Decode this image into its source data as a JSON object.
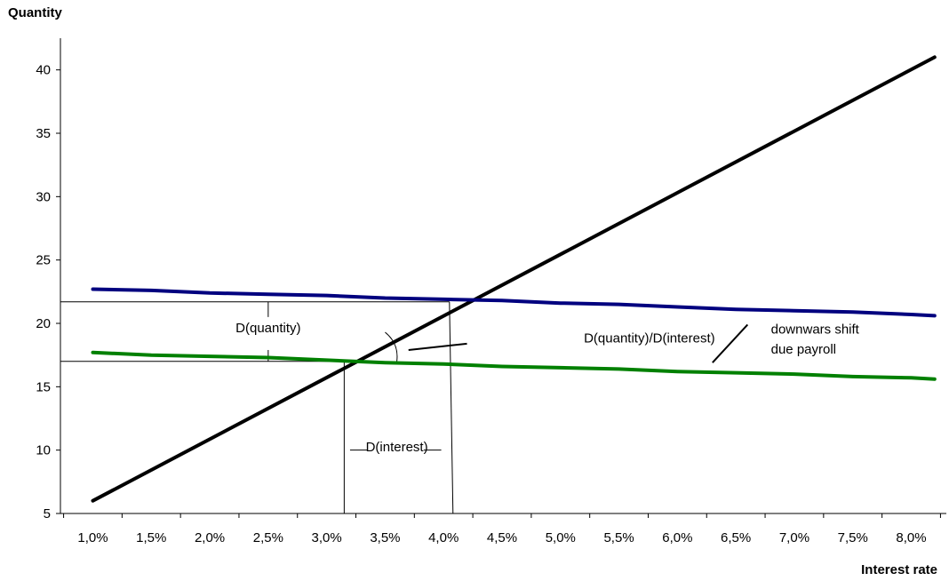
{
  "chart_data": {
    "type": "line",
    "xlabel": "Interest rate",
    "ylabel": "Quantity",
    "x_unit": "percent",
    "xlim": [
      0.7,
      8.3
    ],
    "ylim": [
      5,
      42.5
    ],
    "x_ticks": [
      1.0,
      1.5,
      2.0,
      2.5,
      3.0,
      3.5,
      4.0,
      4.5,
      5.0,
      5.5,
      6.0,
      6.5,
      7.0,
      7.5,
      8.0
    ],
    "x_tick_labels": [
      "1,0%",
      "1,5%",
      "2,0%",
      "2,5%",
      "3,0%",
      "3,5%",
      "4,0%",
      "4,5%",
      "5,0%",
      "5,5%",
      "6,0%",
      "6,5%",
      "7,0%",
      "7,5%",
      "8,0%"
    ],
    "y_ticks": [
      5,
      10,
      15,
      20,
      25,
      30,
      35,
      40
    ],
    "y_tick_labels": [
      "5",
      "10",
      "15",
      "20",
      "25",
      "30",
      "35",
      "40"
    ],
    "grid": false,
    "legend": "none",
    "series": [
      {
        "color": "#000000",
        "x": [
          1.0,
          8.2
        ],
        "y": [
          6.0,
          41.0
        ]
      },
      {
        "color": "#00007f",
        "x": [
          1.0,
          1.5,
          2.0,
          2.5,
          3.0,
          3.5,
          4.0,
          4.5,
          5.0,
          5.5,
          6.0,
          6.5,
          7.0,
          7.5,
          8.0,
          8.2
        ],
        "y": [
          22.7,
          22.6,
          22.4,
          22.3,
          22.2,
          22.0,
          21.9,
          21.8,
          21.6,
          21.5,
          21.3,
          21.1,
          21.0,
          20.9,
          20.7,
          20.6
        ]
      },
      {
        "color": "#008000",
        "x": [
          1.0,
          1.5,
          2.0,
          2.5,
          3.0,
          3.5,
          4.0,
          4.5,
          5.0,
          5.5,
          6.0,
          6.5,
          7.0,
          7.5,
          8.0,
          8.2
        ],
        "y": [
          17.7,
          17.5,
          17.4,
          17.3,
          17.1,
          16.9,
          16.8,
          16.6,
          16.5,
          16.4,
          16.2,
          16.1,
          16.0,
          15.8,
          15.7,
          15.6
        ]
      }
    ],
    "reference_lines": {
      "intersection_high": {
        "x": 4.05,
        "y": 21.7
      },
      "intersection_low": {
        "x": 3.15,
        "y": 17.0
      }
    },
    "annotations": [
      {
        "text": "D(quantity)",
        "x": 2.5,
        "y": 19.3
      },
      {
        "text": "D(quantity)/D(interest)",
        "x": 5.2,
        "y": 18.5
      },
      {
        "text": "D(interest)",
        "x": 3.6,
        "y": 9.9
      },
      {
        "text": "downwars shift",
        "x": 6.8,
        "y": 19.2
      },
      {
        "text": "due payroll",
        "x": 6.8,
        "y": 17.6
      }
    ]
  }
}
